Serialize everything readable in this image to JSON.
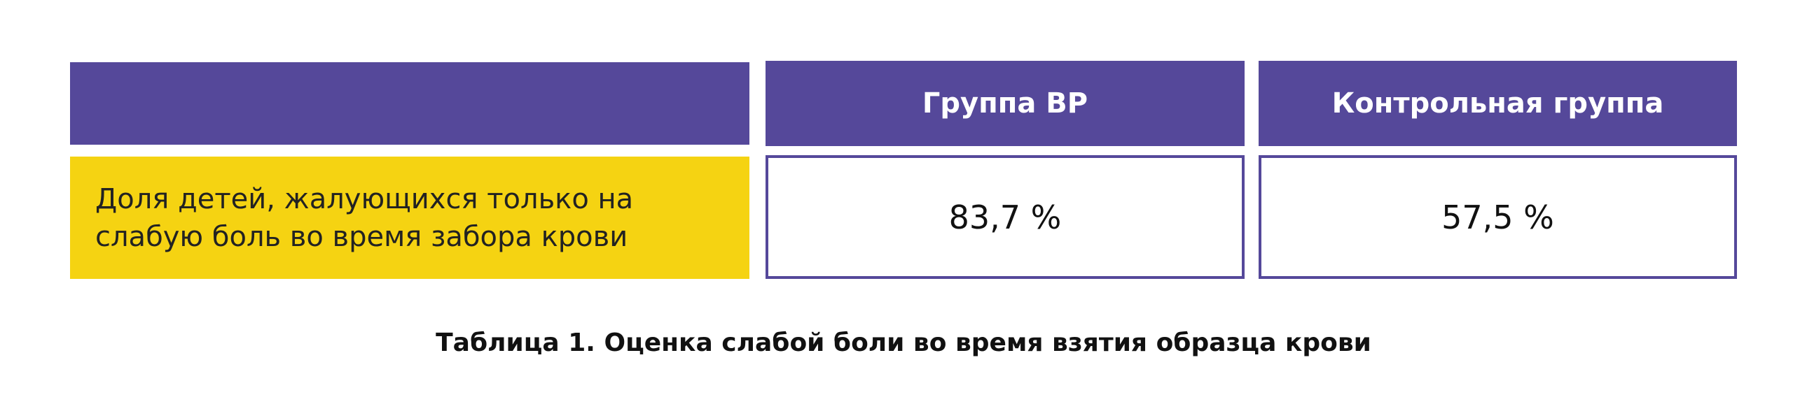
{
  "table": {
    "columns": [
      "Группа ВР",
      "Контрольная группа"
    ],
    "rows": [
      {
        "label": "Доля детей, жалующихся только на слабую боль во время забора крови",
        "values": [
          "83,7 %",
          "57,5 %"
        ]
      }
    ]
  },
  "caption": "Таблица 1. Оценка слабой боли во время взятия образца крови"
}
